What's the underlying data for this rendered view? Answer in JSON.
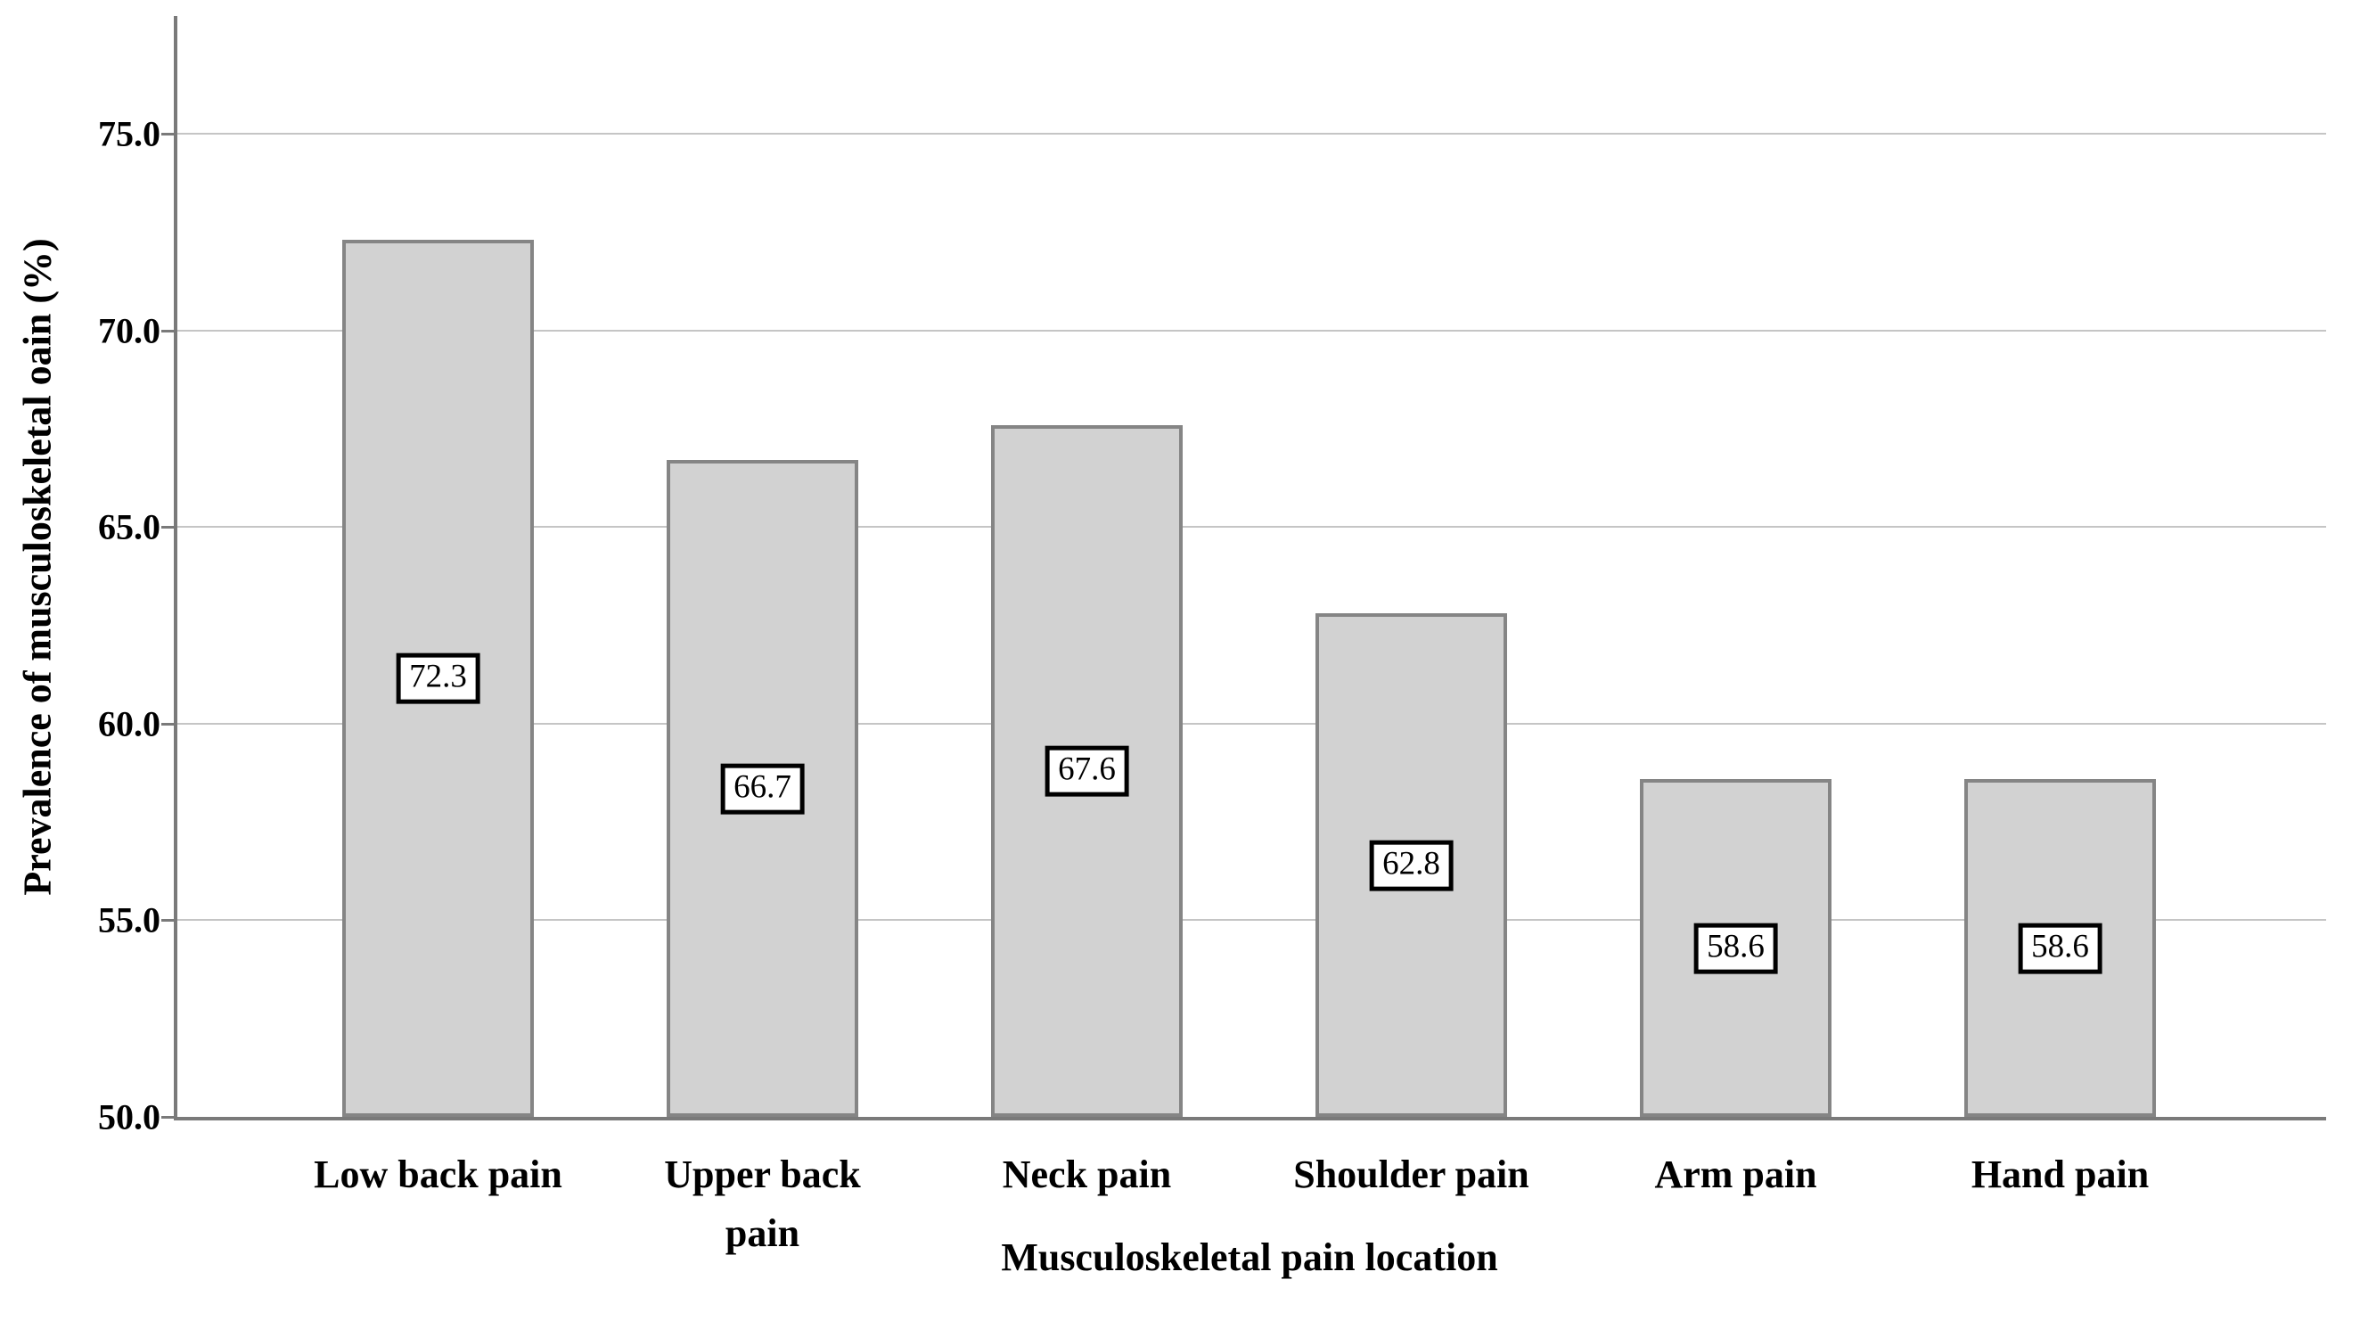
{
  "chart_data": {
    "type": "bar",
    "title": "",
    "xlabel": "Musculoskeletal pain location",
    "ylabel": "Prevalence of musculoskeletal oain (%)",
    "categories": [
      "Low back pain",
      "Upper back pain",
      "Neck pain",
      "Shoulder pain",
      "Arm pain",
      "Hand pain"
    ],
    "category_display": [
      "Low back pain",
      "Upper back\npain",
      "Neck pain",
      "Shoulder pain",
      "Arm pain",
      "Hand pain"
    ],
    "values": [
      72.3,
      66.7,
      67.6,
      62.8,
      58.6,
      58.6
    ],
    "bar_value_labels": [
      "72.3",
      "66.7",
      "67.6",
      "62.8",
      "58.6",
      "58.6"
    ],
    "bar_label_position": "middle-of-bar-boxed",
    "ylim": [
      50,
      78
    ],
    "yticks": [
      50.0,
      55.0,
      60.0,
      65.0,
      70.0,
      75.0
    ],
    "ytick_labels": [
      "50.0",
      "55.0",
      "60.0",
      "65.0",
      "70.0",
      "75.0"
    ],
    "grid": true,
    "legend": false,
    "colors": {
      "bar_fill": "#d2d2d2",
      "bar_border": "#858585",
      "gridline": "#c5c5c5",
      "axis_line": "#7a7a7a",
      "text": "#000000",
      "value_label_box_border": "#000000",
      "value_label_box_fill": "#ffffff",
      "background": "#ffffff"
    }
  }
}
